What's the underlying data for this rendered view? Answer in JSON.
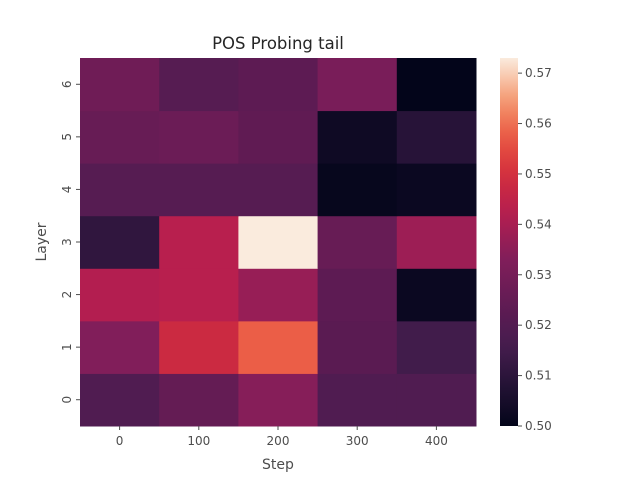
{
  "chart_data": {
    "type": "heatmap",
    "title": "POS Probing tail",
    "xlabel": "Step",
    "ylabel": "Layer",
    "x_categories": [
      "0",
      "100",
      "200",
      "300",
      "400"
    ],
    "y_categories": [
      "0",
      "1",
      "2",
      "3",
      "4",
      "5",
      "6"
    ],
    "values": [
      [
        0.519,
        0.525,
        0.534,
        0.519,
        0.519
      ],
      [
        0.533,
        0.548,
        0.558,
        0.522,
        0.515
      ],
      [
        0.542,
        0.543,
        0.537,
        0.523,
        0.502
      ],
      [
        0.511,
        0.543,
        0.573,
        0.526,
        0.538
      ],
      [
        0.521,
        0.521,
        0.521,
        0.501,
        0.502
      ],
      [
        0.526,
        0.527,
        0.524,
        0.503,
        0.509
      ],
      [
        0.528,
        0.521,
        0.523,
        0.531,
        0.5
      ]
    ],
    "colorbar": {
      "min": 0.5,
      "max": 0.573,
      "ticks": [
        "0.50",
        "0.51",
        "0.52",
        "0.53",
        "0.54",
        "0.55",
        "0.56",
        "0.57"
      ],
      "colormap": "rocket"
    },
    "grid": false
  }
}
